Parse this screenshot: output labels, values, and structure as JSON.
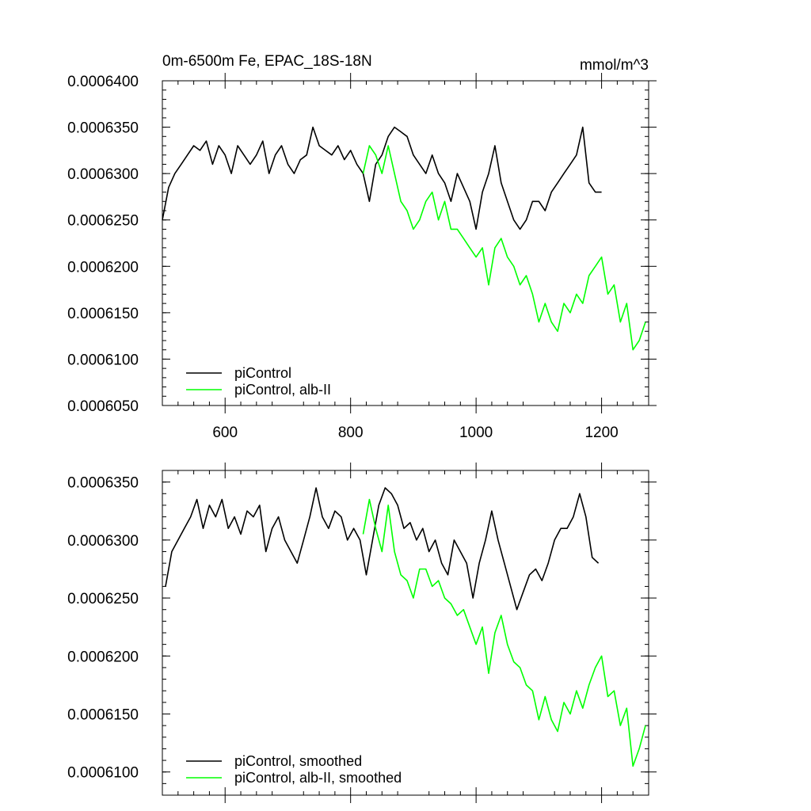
{
  "chart_data": [
    {
      "type": "line",
      "title": "0m-6500m Fe, EPAC_18S-18N",
      "units": "mmol/m^3",
      "xlim": [
        500,
        1275
      ],
      "ylim": [
        0.000605,
        0.00064
      ],
      "xticks": [
        600,
        800,
        1000,
        1200
      ],
      "xtick_labels": [
        "600",
        "800",
        "1000",
        "1200"
      ],
      "yticks": [
        0.000605,
        0.00061,
        0.000615,
        0.00062,
        0.000625,
        0.00063,
        0.000635,
        0.00064
      ],
      "ytick_labels": [
        "0.0006050",
        "0.0006100",
        "0.0006150",
        "0.0006200",
        "0.0006250",
        "0.0006300",
        "0.0006350",
        "0.0006400"
      ],
      "grid": false,
      "legend_position": "bottom-left",
      "series": [
        {
          "name": "piControl",
          "color": "#000000",
          "x": [
            500,
            510,
            520,
            530,
            540,
            550,
            560,
            570,
            580,
            590,
            600,
            610,
            620,
            630,
            640,
            650,
            660,
            670,
            680,
            690,
            700,
            710,
            720,
            730,
            740,
            750,
            760,
            770,
            780,
            790,
            800,
            810,
            820,
            830,
            840,
            850,
            860,
            870,
            880,
            890,
            900,
            910,
            920,
            930,
            940,
            950,
            960,
            970,
            980,
            990,
            1000,
            1010,
            1020,
            1030,
            1040,
            1050,
            1060,
            1070,
            1080,
            1090,
            1100,
            1110,
            1120,
            1130,
            1140,
            1150,
            1160,
            1170,
            1180,
            1190,
            1200
          ],
          "y": [
            0.000625,
            0.0006285,
            0.00063,
            0.000631,
            0.000632,
            0.000633,
            0.0006325,
            0.0006335,
            0.000631,
            0.000633,
            0.000632,
            0.00063,
            0.000633,
            0.000632,
            0.000631,
            0.000632,
            0.0006335,
            0.00063,
            0.000632,
            0.000633,
            0.000631,
            0.00063,
            0.0006315,
            0.000632,
            0.000635,
            0.000633,
            0.0006325,
            0.000632,
            0.000633,
            0.0006315,
            0.0006325,
            0.000631,
            0.00063,
            0.000627,
            0.000631,
            0.000632,
            0.000634,
            0.000635,
            0.0006345,
            0.000634,
            0.000632,
            0.000631,
            0.00063,
            0.000632,
            0.00063,
            0.000629,
            0.000627,
            0.00063,
            0.0006285,
            0.000627,
            0.000624,
            0.000628,
            0.00063,
            0.000633,
            0.000629,
            0.000627,
            0.000625,
            0.000624,
            0.000625,
            0.000627,
            0.000627,
            0.000626,
            0.000628,
            0.000629,
            0.00063,
            0.000631,
            0.000632,
            0.000635,
            0.000629,
            0.000628,
            0.000628
          ]
        },
        {
          "name": "piControl, alb-II",
          "color": "#00ff00",
          "x": [
            820,
            830,
            840,
            850,
            860,
            870,
            880,
            890,
            900,
            910,
            920,
            930,
            940,
            950,
            960,
            970,
            980,
            990,
            1000,
            1010,
            1020,
            1030,
            1040,
            1050,
            1060,
            1070,
            1080,
            1090,
            1100,
            1110,
            1120,
            1130,
            1140,
            1150,
            1160,
            1170,
            1180,
            1190,
            1200,
            1210,
            1220,
            1230,
            1240,
            1250,
            1260,
            1270
          ],
          "y": [
            0.00063,
            0.000633,
            0.000632,
            0.00063,
            0.000633,
            0.00063,
            0.000627,
            0.000626,
            0.000624,
            0.000625,
            0.000627,
            0.000628,
            0.000625,
            0.000627,
            0.000624,
            0.000624,
            0.000623,
            0.000622,
            0.000621,
            0.000622,
            0.000618,
            0.000622,
            0.000623,
            0.000621,
            0.00062,
            0.000618,
            0.000619,
            0.000617,
            0.000614,
            0.000616,
            0.000614,
            0.000613,
            0.000616,
            0.000615,
            0.000617,
            0.000616,
            0.000619,
            0.00062,
            0.000621,
            0.000617,
            0.000618,
            0.000614,
            0.000616,
            0.000611,
            0.000612,
            0.000614
          ]
        }
      ]
    },
    {
      "type": "line",
      "xlim": [
        500,
        1275
      ],
      "ylim": [
        0.000608,
        0.000636
      ],
      "xticks": [
        600,
        800,
        1000,
        1200
      ],
      "yticks": [
        0.00061,
        0.000615,
        0.00062,
        0.000625,
        0.00063,
        0.000635
      ],
      "ytick_labels": [
        "0.0006100",
        "0.0006150",
        "0.0006200",
        "0.0006250",
        "0.0006300",
        "0.0006350"
      ],
      "grid": false,
      "legend_position": "bottom-left",
      "series": [
        {
          "name": "piControl, smoothed",
          "color": "#000000",
          "x": [
            505,
            515,
            525,
            535,
            545,
            555,
            565,
            575,
            585,
            595,
            605,
            615,
            625,
            635,
            645,
            655,
            665,
            675,
            685,
            695,
            705,
            715,
            725,
            735,
            745,
            755,
            765,
            775,
            785,
            795,
            805,
            815,
            825,
            835,
            845,
            855,
            865,
            875,
            885,
            895,
            905,
            915,
            925,
            935,
            945,
            955,
            965,
            975,
            985,
            995,
            1005,
            1015,
            1025,
            1035,
            1045,
            1055,
            1065,
            1075,
            1085,
            1095,
            1105,
            1115,
            1125,
            1135,
            1145,
            1155,
            1165,
            1175,
            1185,
            1195
          ],
          "y": [
            0.000626,
            0.000629,
            0.00063,
            0.000631,
            0.000632,
            0.0006335,
            0.000631,
            0.000633,
            0.000632,
            0.0006335,
            0.000631,
            0.000632,
            0.0006305,
            0.0006325,
            0.000632,
            0.000633,
            0.000629,
            0.000631,
            0.000632,
            0.00063,
            0.000629,
            0.000628,
            0.00063,
            0.000632,
            0.0006345,
            0.000632,
            0.000631,
            0.0006325,
            0.000632,
            0.00063,
            0.000631,
            0.00063,
            0.000627,
            0.00063,
            0.000633,
            0.0006345,
            0.000634,
            0.000633,
            0.000631,
            0.0006315,
            0.00063,
            0.000631,
            0.000629,
            0.00063,
            0.000628,
            0.000627,
            0.00063,
            0.000629,
            0.000628,
            0.000625,
            0.000628,
            0.00063,
            0.0006325,
            0.00063,
            0.000628,
            0.000626,
            0.000624,
            0.0006255,
            0.000627,
            0.0006275,
            0.0006265,
            0.000628,
            0.00063,
            0.000631,
            0.000631,
            0.000632,
            0.000634,
            0.000632,
            0.0006285,
            0.000628
          ]
        },
        {
          "name": "piControl, alb-II, smoothed",
          "color": "#00ff00",
          "x": [
            820,
            830,
            840,
            850,
            860,
            870,
            880,
            890,
            900,
            910,
            920,
            930,
            940,
            950,
            960,
            970,
            980,
            990,
            1000,
            1010,
            1020,
            1030,
            1040,
            1050,
            1060,
            1070,
            1080,
            1090,
            1100,
            1110,
            1120,
            1130,
            1140,
            1150,
            1160,
            1170,
            1180,
            1190,
            1200,
            1210,
            1220,
            1230,
            1240,
            1250,
            1260,
            1270
          ],
          "y": [
            0.0006305,
            0.0006335,
            0.000631,
            0.000629,
            0.000633,
            0.000629,
            0.000627,
            0.0006265,
            0.000625,
            0.0006275,
            0.0006275,
            0.000626,
            0.0006265,
            0.000625,
            0.0006245,
            0.0006235,
            0.000624,
            0.0006225,
            0.000621,
            0.0006225,
            0.0006185,
            0.000622,
            0.0006235,
            0.000621,
            0.0006195,
            0.000619,
            0.0006175,
            0.000617,
            0.0006145,
            0.0006165,
            0.0006145,
            0.0006135,
            0.000616,
            0.000615,
            0.000617,
            0.0006155,
            0.0006175,
            0.000619,
            0.00062,
            0.0006165,
            0.000617,
            0.000614,
            0.0006155,
            0.0006105,
            0.000612,
            0.000614
          ]
        }
      ]
    }
  ]
}
